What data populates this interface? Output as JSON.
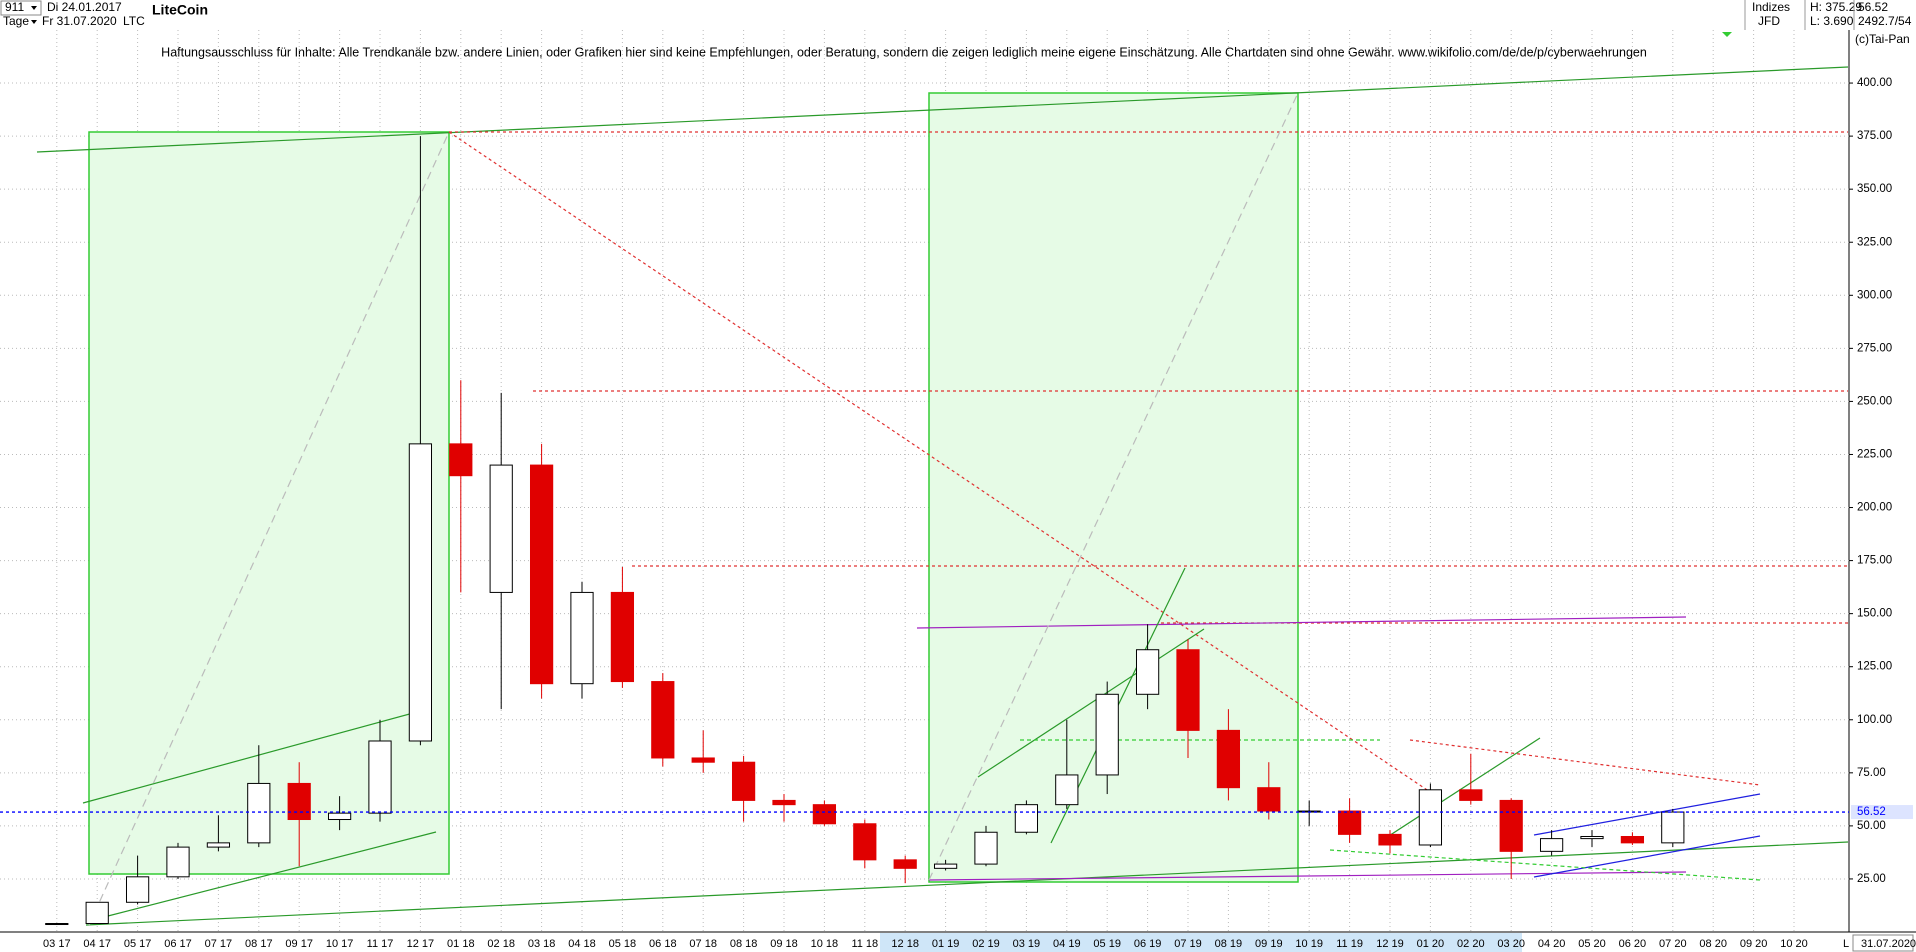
{
  "header": {
    "id": "911",
    "start": "Di 24.01.2017",
    "period": "Tage",
    "end": "Fr 31.07.2020",
    "symbol": "LTC",
    "name": "LiteCoin",
    "group": "Indizes",
    "source": "JFD",
    "high": "H: 375.29",
    "low": "L: 3.690",
    "last": "56.52",
    "info": "2492.7/54",
    "copyright": "(c)Tai-Pan",
    "disclaimer": "Haftungsausschluss für Inhalte: Alle Trendkanäle bzw. andere Linien, oder Grafiken hier sind keine Empfehlungen, oder Beratung, sondern die zeigen lediglich meine eigene Einschätzung. Alle Chartdaten sind ohne Gewähr.  www.wikifolio.com/de/de/p/cyberwaehrungen",
    "end_date": "31.07.2020",
    "scale": "L"
  },
  "chart_data": {
    "type": "candlestick",
    "categories": [
      "03 17",
      "04 17",
      "05 17",
      "06 17",
      "07 17",
      "08 17",
      "09 17",
      "10 17",
      "11 17",
      "12 17",
      "01 18",
      "02 18",
      "03 18",
      "04 18",
      "05 18",
      "06 18",
      "07 18",
      "08 18",
      "09 18",
      "10 18",
      "11 18",
      "12 18",
      "01 19",
      "02 19",
      "03 19",
      "04 19",
      "05 19",
      "06 19",
      "07 19",
      "08 19",
      "09 19",
      "10 19",
      "11 19",
      "12 19",
      "01 20",
      "02 20",
      "03 20",
      "04 20",
      "05 20",
      "06 20",
      "07 20",
      "08 20",
      "09 20",
      "10 20"
    ],
    "open": [
      3.8,
      4.0,
      14,
      26,
      40,
      42,
      70,
      53,
      56,
      90,
      230,
      160,
      220,
      117,
      160,
      118,
      82,
      80,
      62,
      60,
      51,
      34,
      30,
      32,
      47,
      60,
      74,
      112,
      133,
      95,
      68,
      57,
      57,
      46,
      41,
      67,
      62,
      38,
      44,
      45,
      42,
      null,
      null,
      null
    ],
    "high": [
      4.2,
      14,
      36,
      42,
      55,
      88,
      80,
      64,
      100,
      375,
      260,
      254,
      230,
      165,
      172,
      122,
      95,
      83,
      65,
      62,
      53,
      36,
      34,
      50,
      62,
      100,
      118,
      145,
      138,
      105,
      80,
      62,
      63,
      48,
      70,
      84,
      63,
      48,
      48,
      47,
      58,
      null,
      null,
      null
    ],
    "low": [
      3.69,
      4.0,
      13,
      25,
      38,
      40,
      31,
      48,
      52,
      88,
      160,
      105,
      110,
      110,
      115,
      78,
      75,
      52,
      52,
      50,
      30,
      23,
      29,
      31,
      46,
      58,
      65,
      105,
      82,
      62,
      53,
      50,
      42,
      37,
      40,
      60,
      25,
      36,
      40,
      41,
      40,
      null,
      null,
      null
    ],
    "close": [
      4.0,
      14,
      26,
      40,
      42,
      70,
      53,
      56,
      90,
      230,
      215,
      220,
      117,
      160,
      118,
      82,
      80,
      62,
      60,
      51,
      34,
      30,
      32,
      47,
      60,
      74,
      112,
      133,
      95,
      68,
      57,
      57,
      46,
      41,
      67,
      62,
      38,
      44,
      45,
      42,
      56.52,
      null,
      null,
      null
    ],
    "up_color": "#000000",
    "down_color": "#e00000",
    "last_price": 56.52,
    "last_color": "#0000ff",
    "ylim": [
      0,
      425
    ],
    "yticks": [
      {
        "value": 25,
        "label": "25.00"
      },
      {
        "value": 50,
        "label": "50.00"
      },
      {
        "value": 75,
        "label": "75.00"
      },
      {
        "value": 100,
        "label": "100.00"
      },
      {
        "value": 125,
        "label": "125.00"
      },
      {
        "value": 150,
        "label": "150.00"
      },
      {
        "value": 175,
        "label": "175.00"
      },
      {
        "value": 200,
        "label": "200.00"
      },
      {
        "value": 225,
        "label": "225.00"
      },
      {
        "value": 250,
        "label": "250.00"
      },
      {
        "value": 275,
        "label": "275.00"
      },
      {
        "value": 300,
        "label": "300.00"
      },
      {
        "value": 325,
        "label": "325.00"
      },
      {
        "value": 350,
        "label": "350.00"
      },
      {
        "value": 375,
        "label": "375.00"
      },
      {
        "value": 400,
        "label": "400.00"
      }
    ],
    "grid": true
  }
}
